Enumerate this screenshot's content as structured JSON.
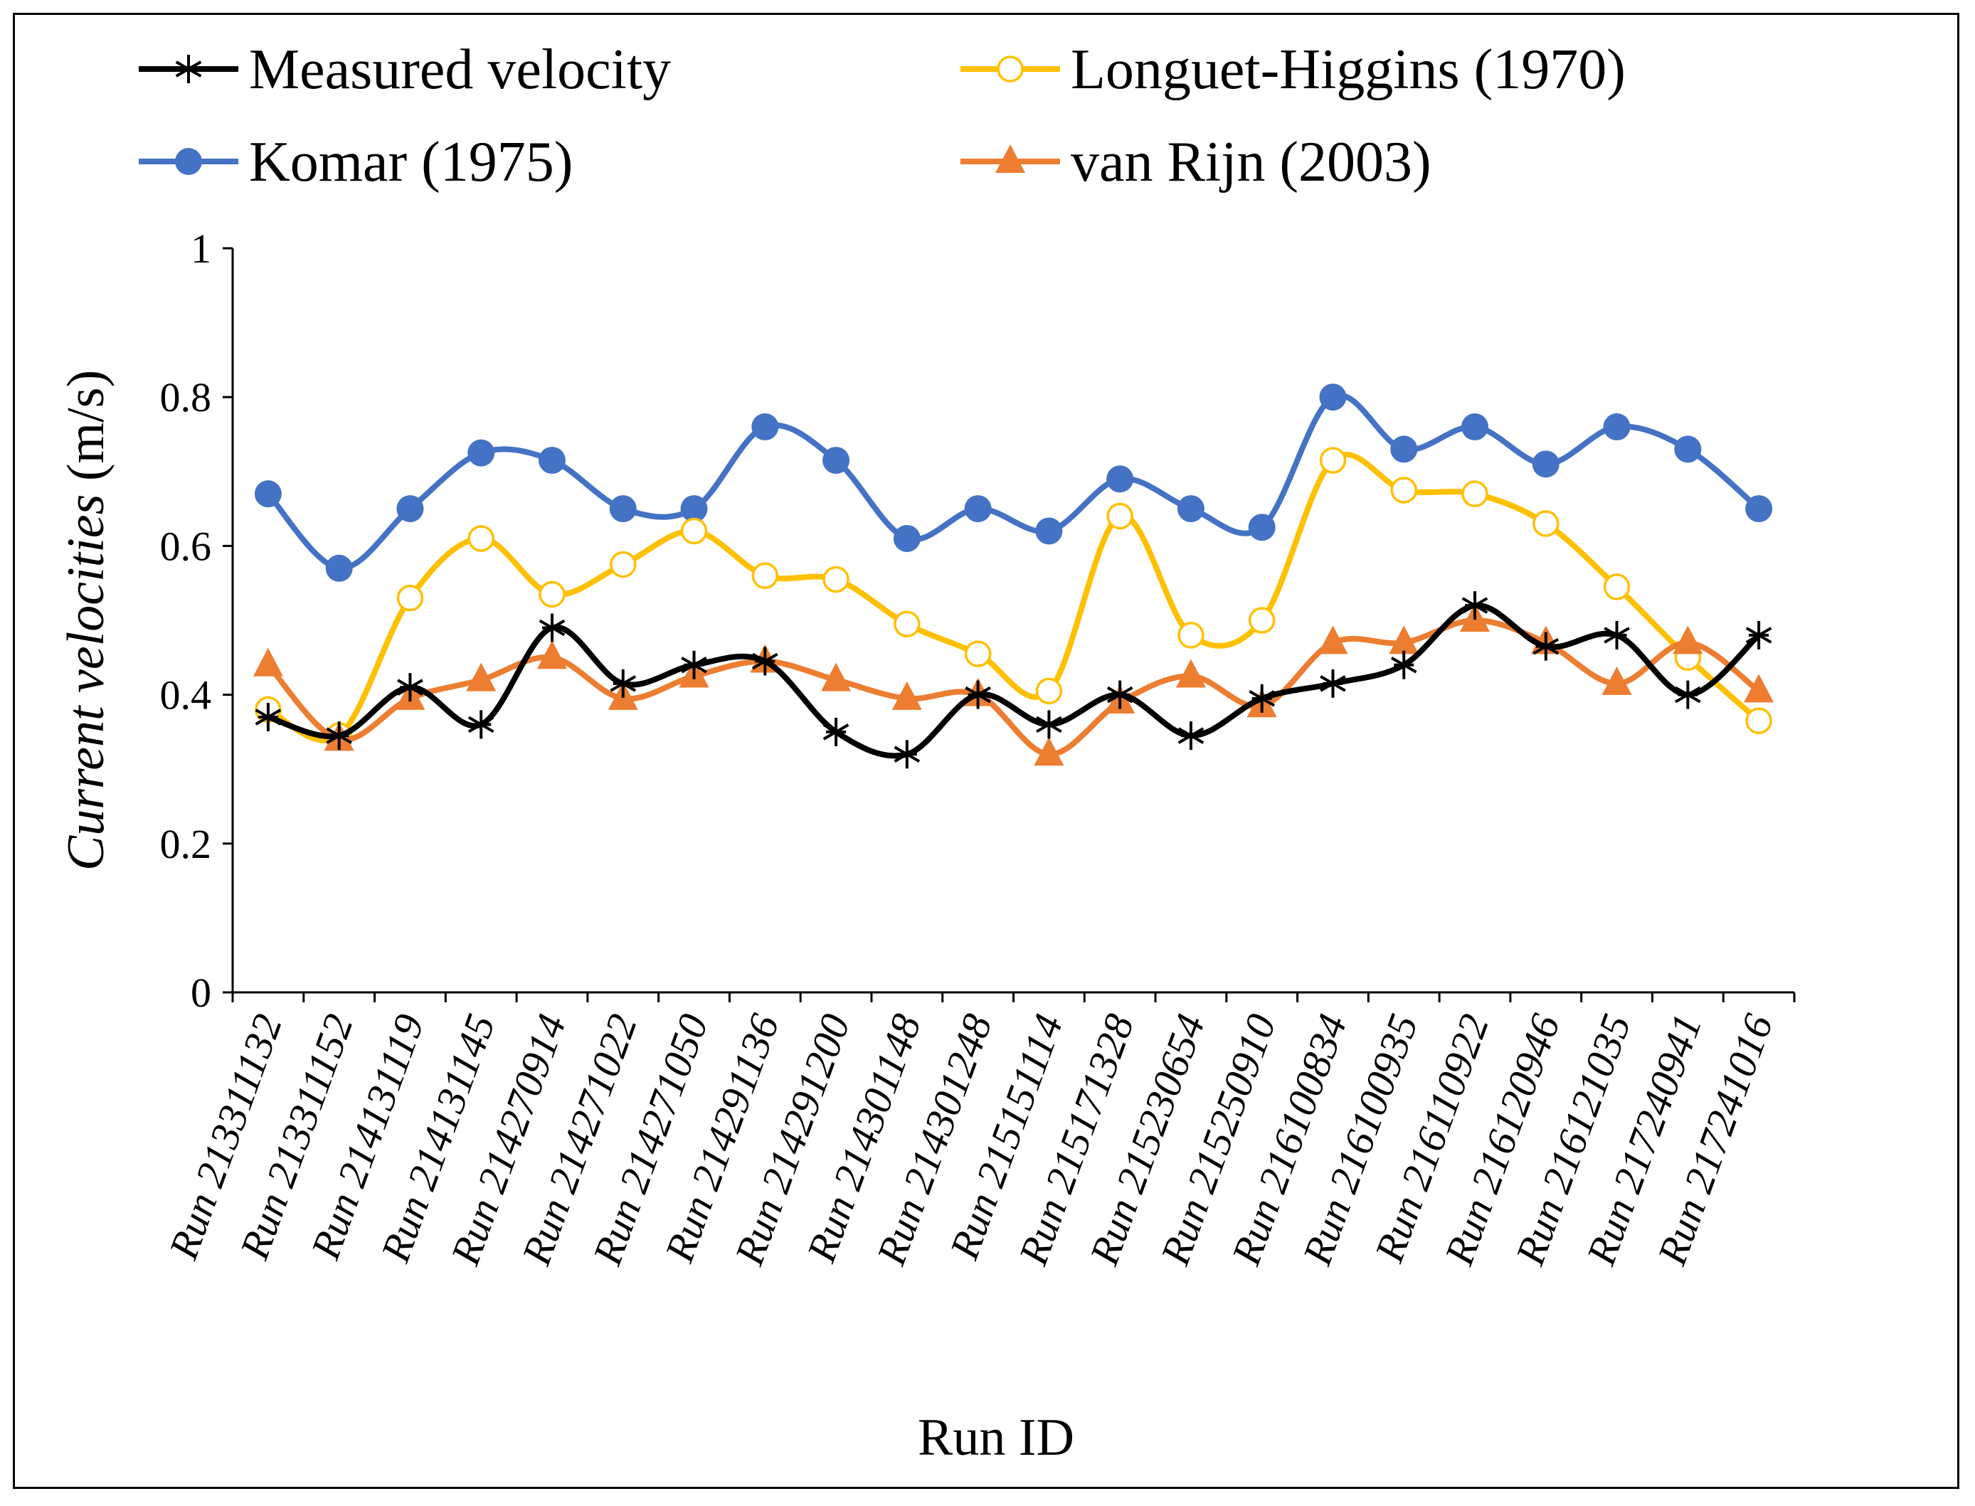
{
  "chart_data": {
    "type": "line",
    "title": "",
    "xlabel": "Run ID",
    "ylabel_italic": "Current velocities",
    "ylabel_unit": " (m/s)",
    "ylim": [
      0,
      1
    ],
    "yticks": [
      0,
      0.2,
      0.4,
      0.6,
      0.8,
      1
    ],
    "ytick_labels": [
      "0",
      "0.2",
      "0.4",
      "0.6",
      "0.8",
      "1"
    ],
    "grid": false,
    "legend_placement": "top",
    "categories": [
      "Run 213311132",
      "Run 213311152",
      "Run 214131119",
      "Run 214131145",
      "Run 214270914",
      "Run 214271022",
      "Run 214271050",
      "Run 214291136",
      "Run 214291200",
      "Run 214301148",
      "Run 214301248",
      "Run 215151114",
      "Run 215171328",
      "Run 215230654",
      "Run 215250910",
      "Run 216100834",
      "Run 216100935",
      "Run 216110922",
      "Run 216120946",
      "Run 216121035",
      "Run 217240941",
      "Run 217241016"
    ],
    "series": [
      {
        "name": "Measured velocity",
        "color": "#000000",
        "marker": "asterisk",
        "values": [
          0.37,
          0.345,
          0.41,
          0.36,
          0.49,
          0.415,
          0.44,
          0.445,
          0.35,
          0.32,
          0.4,
          0.36,
          0.4,
          0.345,
          0.395,
          0.415,
          0.44,
          0.52,
          0.465,
          0.48,
          0.4,
          0.48
        ]
      },
      {
        "name": "Longuet-Higgins (1970)",
        "color": "#FFC000",
        "marker": "open-circle",
        "values": [
          0.38,
          0.345,
          0.53,
          0.61,
          0.535,
          0.575,
          0.62,
          0.56,
          0.555,
          0.495,
          0.455,
          0.405,
          0.64,
          0.48,
          0.5,
          0.715,
          0.675,
          0.67,
          0.63,
          0.545,
          0.45,
          0.365
        ]
      },
      {
        "name": "Komar (1975)",
        "color": "#4472C4",
        "marker": "filled-circle",
        "values": [
          0.67,
          0.57,
          0.65,
          0.725,
          0.715,
          0.65,
          0.65,
          0.76,
          0.715,
          0.61,
          0.65,
          0.62,
          0.69,
          0.65,
          0.625,
          0.8,
          0.73,
          0.76,
          0.71,
          0.76,
          0.73,
          0.65
        ]
      },
      {
        "name": "van Rijn (2003)",
        "color": "#ED7D31",
        "marker": "triangle",
        "values": [
          0.44,
          0.34,
          0.395,
          0.42,
          0.45,
          0.395,
          0.425,
          0.445,
          0.42,
          0.395,
          0.4,
          0.32,
          0.39,
          0.425,
          0.385,
          0.47,
          0.47,
          0.5,
          0.47,
          0.415,
          0.47,
          0.405
        ]
      }
    ]
  }
}
